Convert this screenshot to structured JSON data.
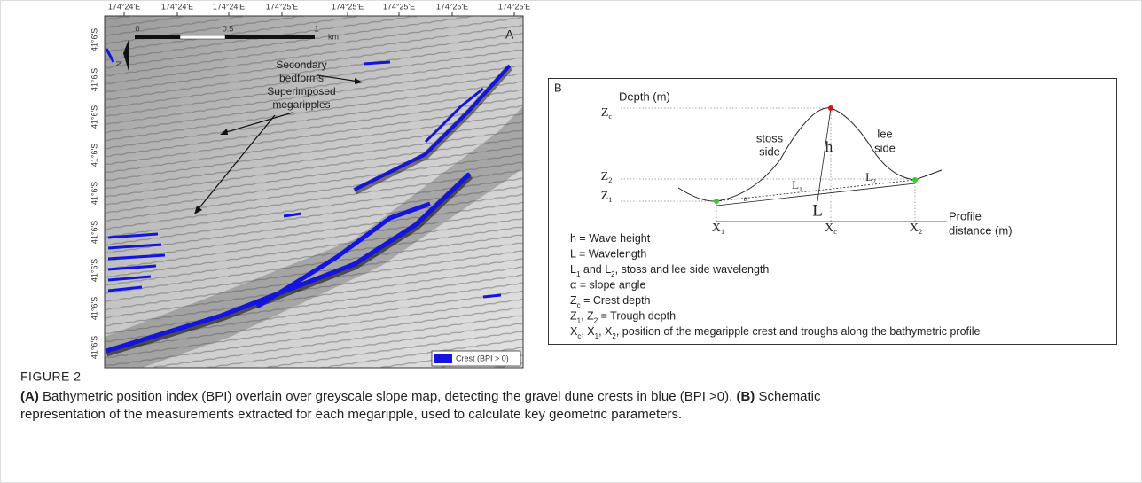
{
  "panel_a": {
    "letter": "A",
    "lon_labels": [
      "174°24'E",
      "174°24'E",
      "174°24'E",
      "174°25'E",
      "174°25'E",
      "174°25'E",
      "174°25'E",
      "174°25'E"
    ],
    "lat_labels": [
      "41°6'S",
      "41°6'S",
      "41°6'S",
      "41°6'S",
      "41°6'S",
      "41°6'S",
      "41°6'S",
      "41°6'S",
      "41°6'S"
    ],
    "scale_labels": [
      "0",
      "0.5",
      "1",
      "km"
    ],
    "north": "N",
    "annotation": [
      "Secondary",
      "bedforms",
      "Superimposed",
      "megaripples"
    ],
    "legend": "Crest (BPI > 0)"
  },
  "panel_b": {
    "letter": "B",
    "y_axis": "Depth (m)",
    "x_axis": [
      "Profile",
      "distance (m)"
    ],
    "z_labels": [
      {
        "text": "Z",
        "sub": "c"
      },
      {
        "text": "Z",
        "sub": "2"
      },
      {
        "text": "Z",
        "sub": "1"
      }
    ],
    "x_labels": [
      {
        "text": "X",
        "sub": "1"
      },
      {
        "text": "X",
        "sub": "c"
      },
      {
        "text": "X",
        "sub": "2"
      }
    ],
    "l_labels": [
      {
        "text": "L",
        "sub": "1"
      },
      {
        "text": "L",
        "sub": "2"
      }
    ],
    "stoss": [
      "stoss",
      "side"
    ],
    "lee": [
      "lee",
      "side"
    ],
    "height": "h",
    "angle": "α",
    "length": "L",
    "legend": [
      [
        "h = Wave height"
      ],
      [
        "L = Wavelength"
      ],
      [
        "L",
        {
          "sub": "1"
        },
        " and L",
        {
          "sub": "2"
        },
        ", stoss and lee side wavelength"
      ],
      [
        "α = slope angle"
      ],
      [
        "Z",
        {
          "sub": "c"
        },
        " = Crest depth"
      ],
      [
        "Z",
        {
          "sub": "1"
        },
        ", Z",
        {
          "sub": "2"
        },
        " = Trough depth"
      ],
      [
        "X",
        {
          "sub": "c"
        },
        ", X",
        {
          "sub": "1"
        },
        ", X",
        {
          "sub": "2"
        },
        ", position of the megaripple crest and troughs along the bathymetric profile"
      ]
    ]
  },
  "caption": {
    "label": "FIGURE 2",
    "lines": [
      [
        {
          "text": "(A)",
          "bold": true
        },
        {
          "text": " Bathymetric position index (BPI) overlain over greyscale slope map, detecting the gravel dune crests in blue (BPI >0). "
        },
        {
          "text": "(B)",
          "bold": true
        },
        {
          "text": " Schematic"
        }
      ],
      [
        {
          "text": "representation of the measurements extracted for each megaripple, used to calculate key geometric parameters."
        }
      ]
    ]
  }
}
